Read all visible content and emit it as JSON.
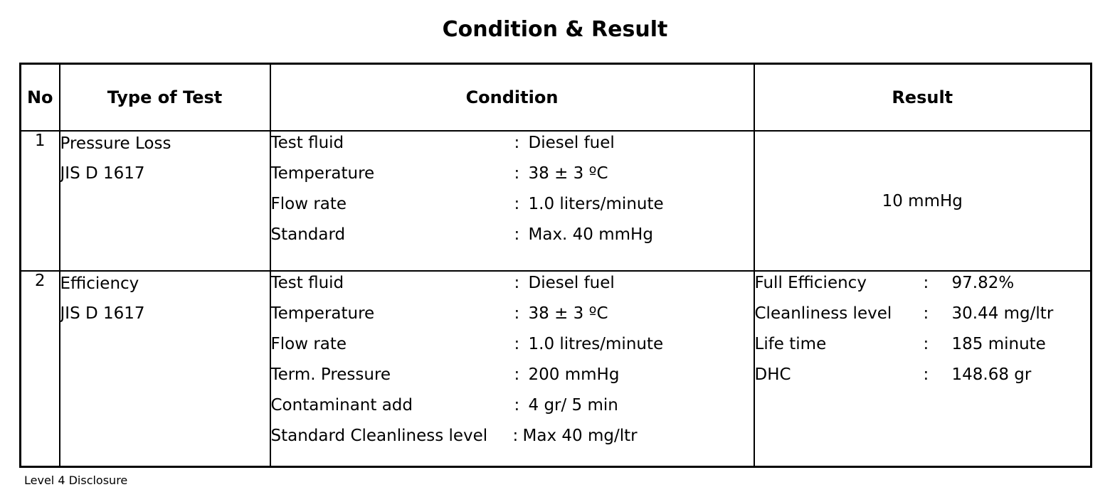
{
  "title": "Condition & Result",
  "headers": {
    "no": "No",
    "type": "Type of Test",
    "condition": "Condition",
    "result": "Result"
  },
  "rows": [
    {
      "no": "1",
      "type": [
        "Pressure Loss",
        "JIS D 1617"
      ],
      "conditions": [
        {
          "label": "Test fluid",
          "colon": ":",
          "value": "Diesel fuel"
        },
        {
          "label": "Temperature",
          "colon": ":",
          "value": "38 ± 3 ºC"
        },
        {
          "label": "Flow rate",
          "colon": ":",
          "value": "1.0 liters/minute"
        },
        {
          "label": "Standard",
          "colon": ":",
          "value": "Max. 40 mmHg"
        }
      ],
      "result": "10 mmHg"
    },
    {
      "no": "2",
      "type": [
        "Efficiency",
        "JIS D 1617"
      ],
      "conditions": [
        {
          "label": "Test fluid",
          "colon": ":",
          "value": "Diesel fuel"
        },
        {
          "label": "Temperature",
          "colon": ":",
          "value": "38 ± 3 ºC"
        },
        {
          "label": "Flow rate",
          "colon": ":",
          "value": "1.0 litres/minute"
        },
        {
          "label": "Term. Pressure",
          "colon": ":",
          "value": "200 mmHg"
        },
        {
          "label": "Contaminant add",
          "colon": ":",
          "value": "4 gr/ 5 min"
        },
        {
          "label": "Standard Cleanliness level",
          "colon": ":",
          "value": "Max 40 mg/ltr"
        }
      ],
      "results": [
        {
          "label": "Full Efficiency",
          "colon": ":",
          "value": "97.82%"
        },
        {
          "label": "Cleanliness level",
          "colon": ":",
          "value": "30.44 mg/ltr"
        },
        {
          "label": "Life time",
          "colon": ":",
          "value": "185 minute"
        },
        {
          "label": "DHC",
          "colon": ":",
          "value": "148.68 gr"
        }
      ]
    }
  ],
  "footer": "Level 4 Disclosure"
}
